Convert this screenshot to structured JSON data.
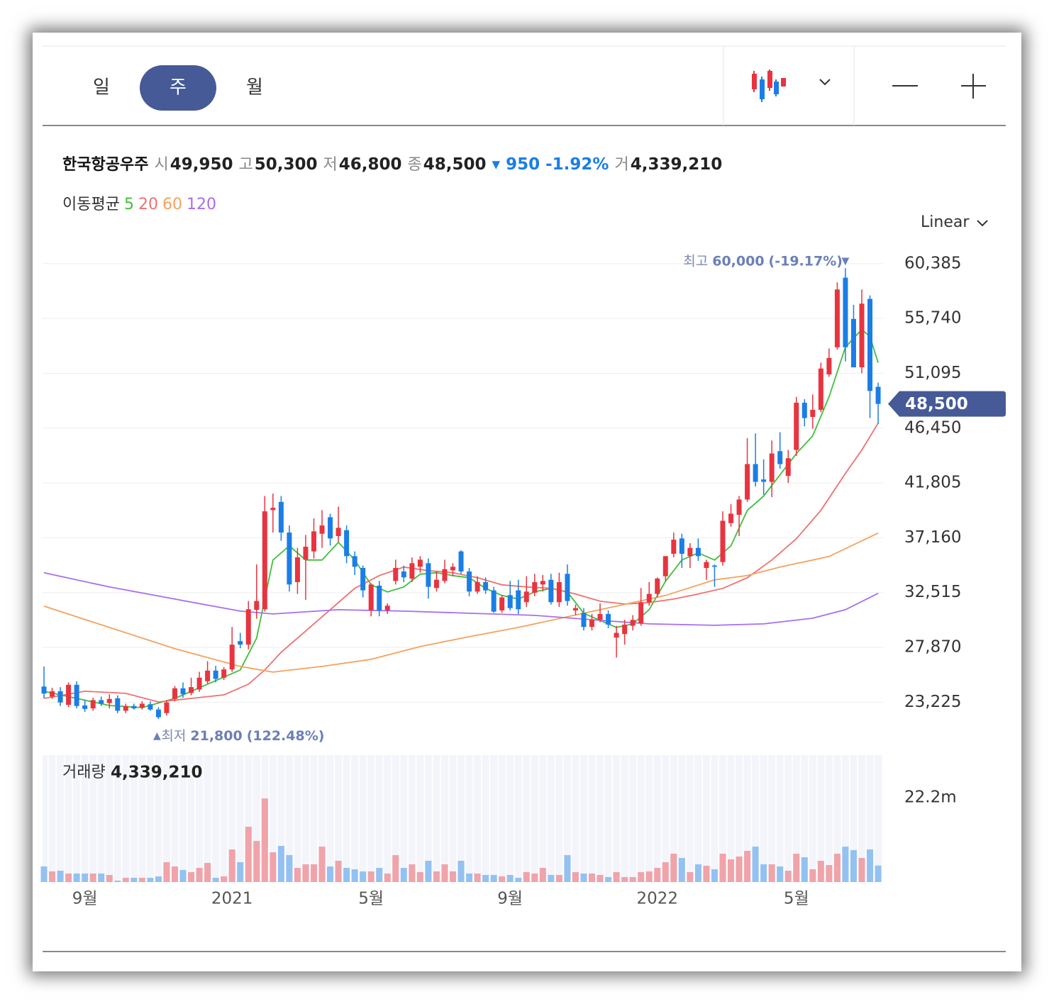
{
  "toolbar": {
    "tabs": [
      "일",
      "주",
      "월"
    ],
    "selected_tab": 1
  },
  "quote": {
    "name": "한국항공우주",
    "fields": [
      {
        "label": "시",
        "value": "49,950"
      },
      {
        "label": "고",
        "value": "50,300"
      },
      {
        "label": "저",
        "value": "46,800"
      },
      {
        "label": "종",
        "value": "48,500"
      }
    ],
    "change": "950",
    "change_pct": "-1.92%",
    "volume_label": "거"
  },
  "ma_legend": "이동평균",
  "scale_button": "Linear",
  "chart_data": {
    "type": "candlestick",
    "categories": [
      null,
      null,
      null,
      null,
      null,
      "9월",
      null,
      null,
      null,
      null,
      null,
      null,
      null,
      null,
      null,
      null,
      null,
      null,
      null,
      null,
      null,
      null,
      null,
      "2021",
      null,
      null,
      null,
      null,
      null,
      null,
      null,
      null,
      null,
      null,
      null,
      null,
      null,
      null,
      null,
      null,
      "5월",
      null,
      null,
      null,
      null,
      null,
      null,
      null,
      null,
      null,
      null,
      null,
      null,
      null,
      null,
      null,
      null,
      "9월",
      null,
      null,
      null,
      null,
      null,
      null,
      null,
      null,
      null,
      null,
      null,
      null,
      null,
      null,
      null,
      null,
      null,
      "2022",
      null,
      null,
      null,
      null,
      null,
      null,
      null,
      null,
      null,
      null,
      null,
      null,
      null,
      null,
      null,
      null,
      "5월",
      null,
      null,
      null,
      null,
      null,
      null,
      null,
      null,
      null,
      null
    ],
    "ohlc": [
      [
        24550,
        26250,
        23550,
        23950
      ],
      [
        23700,
        24450,
        23500,
        24150
      ],
      [
        24150,
        24500,
        22900,
        23200
      ],
      [
        23000,
        24900,
        22800,
        24700
      ],
      [
        24700,
        25000,
        22700,
        22900
      ],
      [
        22950,
        23400,
        22400,
        22650
      ],
      [
        22700,
        23600,
        22500,
        23400
      ],
      [
        23400,
        23700,
        22900,
        23100
      ],
      [
        23150,
        23900,
        22700,
        23500
      ],
      [
        23550,
        23800,
        22300,
        22500
      ],
      [
        22500,
        23100,
        22300,
        22900
      ],
      [
        22900,
        23100,
        22600,
        22700
      ],
      [
        22750,
        23300,
        22600,
        23100
      ],
      [
        23050,
        23300,
        22500,
        22600
      ],
      [
        22600,
        22800,
        21800,
        21950
      ],
      [
        22300,
        23400,
        22100,
        23200
      ],
      [
        23500,
        24600,
        23300,
        24400
      ],
      [
        24400,
        24900,
        23600,
        23900
      ],
      [
        24000,
        25300,
        23800,
        24500
      ],
      [
        24300,
        25800,
        24100,
        25300
      ],
      [
        25000,
        26700,
        24800,
        25900
      ],
      [
        25900,
        26300,
        24900,
        25200
      ],
      [
        25300,
        26200,
        25100,
        26000
      ],
      [
        26000,
        29600,
        25800,
        28100
      ],
      [
        28400,
        29100,
        27800,
        28100
      ],
      [
        28100,
        31800,
        27700,
        31100
      ],
      [
        31050,
        34900,
        30300,
        31800
      ],
      [
        31100,
        40700,
        30900,
        39400
      ],
      [
        39500,
        40900,
        37600,
        39700
      ],
      [
        40200,
        40700,
        36900,
        37600
      ],
      [
        37600,
        38200,
        32600,
        33200
      ],
      [
        33400,
        36300,
        32400,
        35500
      ],
      [
        35300,
        37400,
        31900,
        36400
      ],
      [
        36000,
        38800,
        35400,
        37700
      ],
      [
        37500,
        39500,
        36300,
        38200
      ],
      [
        38900,
        39200,
        36500,
        37100
      ],
      [
        37300,
        39800,
        36800,
        38000
      ],
      [
        37800,
        38200,
        35000,
        35600
      ],
      [
        35600,
        36000,
        34000,
        34700
      ],
      [
        34600,
        34800,
        32100,
        32700
      ],
      [
        31000,
        33300,
        30500,
        33200
      ],
      [
        33100,
        33500,
        30500,
        31000
      ],
      [
        31000,
        31600,
        30700,
        31400
      ],
      [
        33500,
        35300,
        33200,
        34600
      ],
      [
        34300,
        34800,
        33400,
        33800
      ],
      [
        33700,
        35500,
        33400,
        35000
      ],
      [
        34700,
        35600,
        34200,
        35300
      ],
      [
        35000,
        35400,
        32000,
        33000
      ],
      [
        32900,
        34300,
        32600,
        33600
      ],
      [
        33500,
        35300,
        33300,
        34500
      ],
      [
        34400,
        35000,
        33900,
        34700
      ],
      [
        36000,
        36100,
        34100,
        34300
      ],
      [
        34300,
        34600,
        32200,
        32600
      ],
      [
        32600,
        33900,
        32400,
        33400
      ],
      [
        33400,
        33800,
        32400,
        32700
      ],
      [
        32700,
        33000,
        30800,
        30900
      ],
      [
        31000,
        32300,
        30800,
        32100
      ],
      [
        32300,
        33500,
        31000,
        31200
      ],
      [
        32700,
        33600,
        30700,
        31100
      ],
      [
        31700,
        33900,
        31300,
        32600
      ],
      [
        32500,
        34100,
        32200,
        33400
      ],
      [
        33200,
        34000,
        32600,
        33500
      ],
      [
        33600,
        34100,
        31500,
        31700
      ],
      [
        31700,
        34200,
        31300,
        33400
      ],
      [
        34100,
        34900,
        31400,
        31800
      ],
      [
        31000,
        31500,
        30600,
        31200
      ],
      [
        30800,
        31200,
        29300,
        29600
      ],
      [
        29600,
        30700,
        29300,
        30200
      ],
      [
        30200,
        31600,
        30000,
        30700
      ],
      [
        30700,
        31000,
        29500,
        29800
      ],
      [
        28700,
        29700,
        27000,
        29100
      ],
      [
        29000,
        30200,
        28100,
        29800
      ],
      [
        29700,
        30600,
        29300,
        30200
      ],
      [
        29900,
        32900,
        29700,
        31700
      ],
      [
        31700,
        33400,
        31400,
        32400
      ],
      [
        32400,
        33800,
        32100,
        33700
      ],
      [
        33900,
        35600,
        33500,
        35600
      ],
      [
        35800,
        37600,
        35500,
        37000
      ],
      [
        37100,
        37500,
        34600,
        35800
      ],
      [
        35600,
        36700,
        34600,
        36300
      ],
      [
        36300,
        37100,
        35200,
        35600
      ],
      [
        34600,
        35300,
        33600,
        35100
      ],
      [
        34800,
        34900,
        33000,
        34700
      ],
      [
        35100,
        39400,
        34800,
        38600
      ],
      [
        38400,
        40000,
        38100,
        39200
      ],
      [
        39100,
        40700,
        37300,
        40400
      ],
      [
        40400,
        45600,
        40200,
        43400
      ],
      [
        43400,
        46000,
        41500,
        41900
      ],
      [
        42100,
        43800,
        40800,
        41900
      ],
      [
        41900,
        45400,
        40600,
        44300
      ],
      [
        44500,
        46100,
        43000,
        43400
      ],
      [
        42400,
        44600,
        41800,
        43900
      ],
      [
        44600,
        49100,
        44100,
        48600
      ],
      [
        48600,
        48900,
        46600,
        47300
      ],
      [
        47400,
        49300,
        46400,
        48000
      ],
      [
        48000,
        52000,
        47800,
        51500
      ],
      [
        51000,
        53200,
        50800,
        52400
      ],
      [
        53300,
        58800,
        53100,
        58200
      ],
      [
        59200,
        60000,
        52100,
        53300
      ],
      [
        55700,
        56900,
        51700,
        51600
      ],
      [
        51600,
        58200,
        51100,
        57000
      ],
      [
        57400,
        57700,
        47300,
        49600
      ],
      [
        49950,
        50300,
        46800,
        48500
      ]
    ],
    "up_color": "#e8343f",
    "down_color": "#1a7ee6",
    "ylim": [
      20000,
      62000
    ],
    "yticks": [
      {
        "value": 60385,
        "label": "60,385"
      },
      {
        "value": 55740,
        "label": "55,740"
      },
      {
        "value": 51095,
        "label": "51,095"
      },
      {
        "value": 46450,
        "label": "46,450"
      },
      {
        "value": 41805,
        "label": "41,805"
      },
      {
        "value": 37160,
        "label": "37,160"
      },
      {
        "value": 32515,
        "label": "32,515"
      },
      {
        "value": 27870,
        "label": "27,870"
      },
      {
        "value": 23225,
        "label": "23,225"
      }
    ],
    "grid": true,
    "series": [
      {
        "name": "5",
        "color": "#3fbf3a",
        "x": [
          0,
          4,
          8,
          12,
          16,
          20,
          24,
          26,
          28,
          30,
          32,
          34,
          36,
          38,
          40,
          42,
          44,
          46,
          48,
          50,
          52,
          54,
          56,
          58,
          60,
          62,
          64,
          66,
          68,
          70,
          72,
          74,
          76,
          78,
          80,
          82,
          84,
          86,
          88,
          90,
          92,
          94,
          96,
          98,
          100,
          101,
          102
        ],
        "values": [
          24149,
          23548,
          22946,
          22766,
          23548,
          24750,
          25953,
          28659,
          35273,
          36475,
          35273,
          35273,
          36776,
          35273,
          33168,
          32567,
          32988,
          34070,
          34190,
          33950,
          33770,
          32868,
          32267,
          31966,
          32567,
          32868,
          32567,
          30763,
          30162,
          29561,
          29861,
          31064,
          33469,
          35273,
          35874,
          35273,
          36475,
          39482,
          40685,
          42489,
          44293,
          45796,
          49103,
          53312,
          54815,
          54214,
          51989
        ]
      },
      {
        "name": "20",
        "color": "#f07070",
        "x": [
          0,
          5,
          10,
          14,
          18,
          22,
          25,
          27,
          29,
          32,
          35,
          38,
          41,
          44,
          47,
          50,
          53,
          56,
          59,
          62,
          65,
          68,
          71,
          74,
          77,
          80,
          83,
          86,
          89,
          92,
          95,
          98,
          100,
          102
        ],
        "values": [
          23548,
          24149,
          23969,
          23247,
          23548,
          23848,
          24750,
          25953,
          27456,
          29260,
          31064,
          32868,
          33950,
          34672,
          34371,
          34190,
          33770,
          33168,
          32988,
          32868,
          32387,
          31785,
          31545,
          31665,
          31966,
          32387,
          32868,
          33770,
          35273,
          37077,
          39482,
          42609,
          44593,
          46878
        ]
      },
      {
        "name": "60",
        "color": "#f5a25d",
        "x": [
          0,
          8,
          16,
          24,
          28,
          34,
          40,
          46,
          52,
          58,
          64,
          70,
          76,
          82,
          86,
          90,
          96,
          102
        ],
        "values": [
          31365,
          29561,
          27757,
          26254,
          25772,
          26254,
          26855,
          27937,
          28779,
          29561,
          30463,
          31365,
          32267,
          33589,
          33950,
          34672,
          35574,
          37558
        ]
      },
      {
        "name": "120",
        "color": "#a66ff0",
        "x": [
          0,
          8,
          16,
          24,
          28,
          36,
          44,
          52,
          60,
          68,
          74,
          82,
          88,
          94,
          98,
          102
        ],
        "values": [
          34190,
          32988,
          31966,
          30944,
          30703,
          31064,
          30944,
          30763,
          30583,
          30162,
          29861,
          29741,
          29861,
          30342,
          31064,
          32447
        ]
      }
    ],
    "price_tag": {
      "value": 48500,
      "label": "48,500"
    },
    "high_annotation": {
      "label": "최고",
      "value": 60000,
      "value_label": "60,000",
      "change": "(-19.17%)",
      "index": 98
    },
    "low_annotation": {
      "label": "최저",
      "value": 21800,
      "value_label": "21,800",
      "change": "(122.48%)",
      "index": 14
    },
    "volume": {
      "title": "거래량",
      "last_label": "4,339,210",
      "up_color": "#f0a3a9",
      "down_color": "#93c2f2",
      "ylim": [
        0,
        33400000
      ],
      "yticks": [
        {
          "value": 22200000,
          "label": "22.2m"
        }
      ],
      "values": [
        4103000,
        2798000,
        2984000,
        2238000,
        2238000,
        2238000,
        2238000,
        2238000,
        1865000,
        373000,
        1119000,
        1119000,
        1119000,
        1119000,
        1492000,
        5222000,
        4103000,
        3170000,
        2611000,
        3730000,
        5036000,
        1119000,
        1492000,
        8579000,
        5222000,
        14547000,
        10817000,
        22007000,
        7833000,
        9512000,
        7087000,
        3730000,
        4662000,
        4662000,
        9325000,
        4103000,
        5595000,
        3730000,
        3357000,
        2798000,
        2798000,
        3730000,
        2238000,
        7087000,
        3730000,
        4662000,
        2611000,
        5595000,
        2798000,
        4662000,
        2798000,
        5595000,
        2238000,
        2238000,
        1865000,
        1865000,
        1492000,
        1865000,
        1119000,
        2611000,
        2238000,
        3730000,
        1865000,
        1865000,
        7087000,
        2611000,
        2238000,
        2238000,
        1865000,
        1306000,
        2611000,
        1306000,
        1306000,
        2611000,
        2798000,
        3730000,
        5222000,
        7460000,
        6341000,
        2611000,
        4662000,
        4290000,
        3357000,
        7460000,
        5968000,
        6714000,
        8206000,
        9325000,
        4662000,
        4662000,
        4103000,
        2984000,
        7460000,
        6528000,
        3357000,
        5595000,
        4476000,
        7460000,
        9325000,
        8393000,
        6341000,
        8579000,
        4339210
      ]
    }
  }
}
